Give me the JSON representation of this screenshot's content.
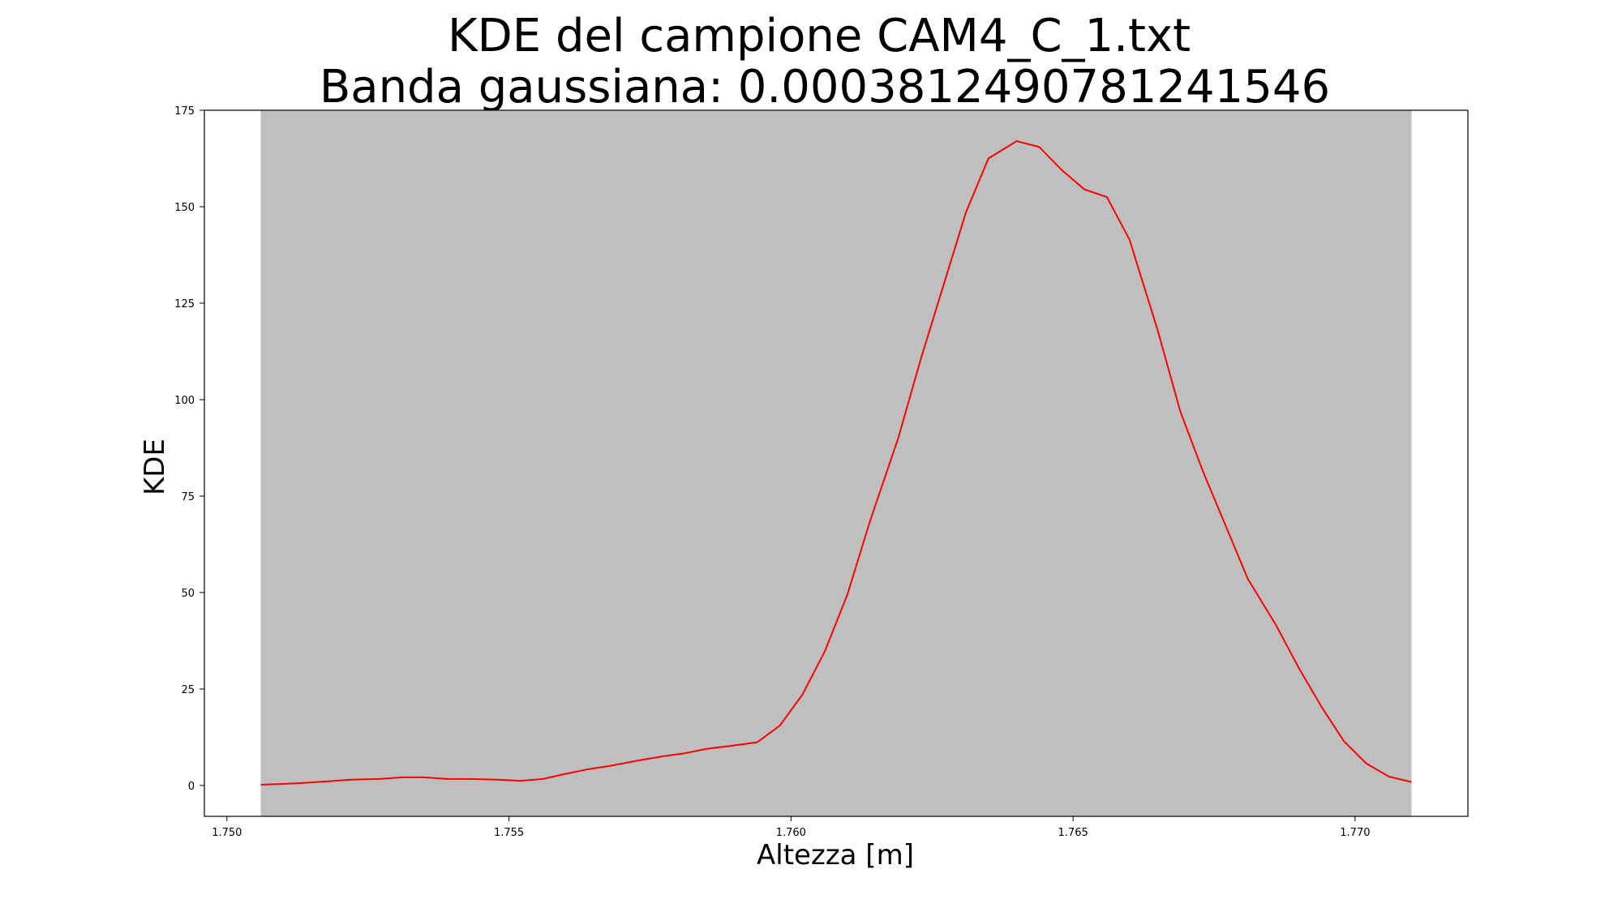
{
  "chart_data": {
    "type": "line",
    "title_line1": "KDE del campione CAM4_C_1.txt",
    "title_line2": "Banda gaussiana: 0.0003812490781241546",
    "xlabel": "Altezza [m]",
    "ylabel": "KDE",
    "xlim": [
      1.7496,
      1.772
    ],
    "ylim": [
      -8,
      175
    ],
    "xticks": [
      1.75,
      1.755,
      1.76,
      1.765,
      1.77
    ],
    "xtick_labels": [
      "1.750",
      "1.755",
      "1.760",
      "1.765",
      "1.770"
    ],
    "yticks": [
      0,
      25,
      50,
      75,
      100,
      125,
      150,
      175
    ],
    "ytick_labels": [
      "0",
      "25",
      "50",
      "75",
      "100",
      "125",
      "150",
      "175"
    ],
    "shaded_region": {
      "x_start": 1.7506,
      "x_end": 1.771,
      "color": "#bfbfbf"
    },
    "series": [
      {
        "color": "#ff0000",
        "x": [
          1.7506,
          1.751,
          1.7514,
          1.7518,
          1.7522,
          1.7527,
          1.7531,
          1.7535,
          1.7539,
          1.7543,
          1.7548,
          1.7552,
          1.7556,
          1.756,
          1.7564,
          1.7568,
          1.7573,
          1.7577,
          1.7581,
          1.7585,
          1.7589,
          1.7594,
          1.7598,
          1.7602,
          1.7606,
          1.761,
          1.7614,
          1.7619,
          1.7623,
          1.7627,
          1.7631,
          1.7635,
          1.764,
          1.7644,
          1.7648,
          1.7652,
          1.7656,
          1.766,
          1.7665,
          1.7669,
          1.7673,
          1.7677,
          1.7681,
          1.7686,
          1.769,
          1.7694,
          1.7698,
          1.7702,
          1.7706,
          1.771
        ],
        "y": [
          0.2,
          0.4,
          0.7,
          1.1,
          1.5,
          1.7,
          2.1,
          2.1,
          1.7,
          1.7,
          1.5,
          1.2,
          1.7,
          3.0,
          4.2,
          5.1,
          6.5,
          7.5,
          8.3,
          9.5,
          10.2,
          11.2,
          15.5,
          23.5,
          34.8,
          49.5,
          68.5,
          90.0,
          110.5,
          129.5,
          148.5,
          162.5,
          167.0,
          165.5,
          159.5,
          154.5,
          152.5,
          141.5,
          118.0,
          97.0,
          81.5,
          67.5,
          53.5,
          41.5,
          30.5,
          20.5,
          11.5,
          5.7,
          2.3,
          0.9
        ]
      }
    ]
  }
}
